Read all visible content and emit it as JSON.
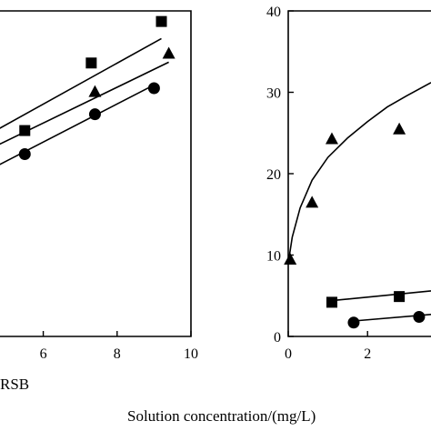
{
  "chart_data": [
    {
      "type": "scatter",
      "xlabel": "RSB",
      "xticks": [
        6,
        8,
        10
      ],
      "xlim": [
        3.4,
        10
      ],
      "ylim": [
        0,
        40
      ],
      "series": [
        {
          "marker": "square",
          "points": [
            [
              5.5,
              25.3
            ],
            [
              7.3,
              33.6
            ],
            [
              9.2,
              38.7
            ]
          ],
          "fit": [
            [
              3.4,
              22.0
            ],
            [
              9.2,
              36.6
            ]
          ]
        },
        {
          "marker": "triangle",
          "points": [
            [
              7.4,
              30.1
            ],
            [
              9.4,
              34.8
            ]
          ],
          "fit": [
            [
              3.4,
              20.5
            ],
            [
              9.4,
              33.7
            ]
          ]
        },
        {
          "marker": "circle",
          "points": [
            [
              5.5,
              22.4
            ],
            [
              7.4,
              27.3
            ],
            [
              9.0,
              30.5
            ]
          ],
          "fit": [
            [
              3.4,
              17.8
            ],
            [
              9.0,
              30.9
            ]
          ]
        }
      ]
    },
    {
      "type": "scatter",
      "xticks": [
        0,
        2
      ],
      "yticks": [
        0,
        10,
        20,
        30,
        40
      ],
      "xlim": [
        0,
        3.6
      ],
      "ylim": [
        0,
        40
      ],
      "series": [
        {
          "marker": "triangle",
          "points": [
            [
              0.05,
              9.5
            ],
            [
              0.6,
              16.5
            ],
            [
              1.1,
              24.3
            ],
            [
              2.8,
              25.5
            ]
          ],
          "fit": [
            [
              0,
              9.0
            ],
            [
              0.1,
              12.2
            ],
            [
              0.3,
              15.8
            ],
            [
              0.6,
              19.2
            ],
            [
              1.0,
              22.0
            ],
            [
              1.5,
              24.4
            ],
            [
              2.0,
              26.4
            ],
            [
              2.5,
              28.2
            ],
            [
              3.0,
              29.6
            ],
            [
              3.6,
              31.2
            ]
          ]
        },
        {
          "marker": "square",
          "points": [
            [
              1.1,
              4.2
            ],
            [
              2.8,
              4.9
            ]
          ],
          "fit": [
            [
              1.1,
              4.4
            ],
            [
              3.6,
              5.6
            ]
          ]
        },
        {
          "marker": "circle",
          "points": [
            [
              1.65,
              1.7
            ],
            [
              3.3,
              2.4
            ]
          ],
          "fit": [
            [
              1.65,
              1.9
            ],
            [
              3.6,
              2.7
            ]
          ]
        }
      ]
    }
  ],
  "shared_xlabel": "Solution concentration/(mg/L)"
}
